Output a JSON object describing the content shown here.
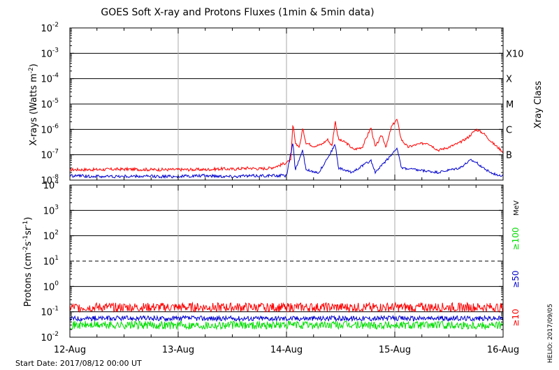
{
  "title": "GOES Soft X-ray and Protons Fluxes   (1min & 5min data)",
  "footer": {
    "start_date": "Start Date: 2017/08/12 00:00 UT",
    "credit": "HELIO: 2017/09/05"
  },
  "colors": {
    "long_xray": "#ff0000",
    "short_xray": "#0000cc",
    "p10": "#ff0000",
    "p50": "#0000cc",
    "p100": "#00dd00",
    "grid": "#000000",
    "day_lines": "#aaaaaa"
  },
  "chart_data": [
    {
      "type": "line",
      "name": "xray",
      "ylabel": "X-rays (Watts m^-2)",
      "yscale": "log",
      "ylim": [
        1e-08,
        0.01
      ],
      "xlim": [
        "2017-08-12 00:00",
        "2017-08-16 00:00"
      ],
      "x_ticks": [
        "12-Aug",
        "13-Aug",
        "14-Aug",
        "15-Aug",
        "16-Aug"
      ],
      "y_ticks": [
        {
          "base": "10",
          "exp": "-2"
        },
        {
          "base": "10",
          "exp": "-3"
        },
        {
          "base": "10",
          "exp": "-4"
        },
        {
          "base": "10",
          "exp": "-5"
        },
        {
          "base": "10",
          "exp": "-6"
        },
        {
          "base": "10",
          "exp": "-7"
        },
        {
          "base": "10",
          "exp": "-8"
        }
      ],
      "grid": true,
      "right_axis_label": "Xray Class",
      "class_labels": [
        {
          "label": "X10",
          "value": 0.001
        },
        {
          "label": "X",
          "value": 0.0001
        },
        {
          "label": "M",
          "value": 1e-05
        },
        {
          "label": "C",
          "value": 1e-06
        },
        {
          "label": "B",
          "value": 1e-07
        }
      ],
      "series": [
        {
          "key": "long",
          "points": [
            [
              0,
              2.6e-08
            ],
            [
              0.25,
              2.6e-08
            ],
            [
              0.5,
              2.7e-08
            ],
            [
              0.75,
              2.6e-08
            ],
            [
              1.0,
              2.6e-08
            ],
            [
              1.25,
              2.6e-08
            ],
            [
              1.4,
              2.8e-08
            ],
            [
              1.5,
              2.7e-08
            ],
            [
              1.65,
              3e-08
            ],
            [
              1.75,
              2.8e-08
            ],
            [
              1.85,
              3e-08
            ],
            [
              1.95,
              4e-08
            ],
            [
              2.0,
              5e-08
            ],
            [
              2.04,
              6e-08
            ],
            [
              2.06,
              1.8e-06
            ],
            [
              2.08,
              3e-07
            ],
            [
              2.12,
              2e-07
            ],
            [
              2.15,
              1.1e-06
            ],
            [
              2.18,
              3e-07
            ],
            [
              2.25,
              2.2e-07
            ],
            [
              2.32,
              2.5e-07
            ],
            [
              2.38,
              4e-07
            ],
            [
              2.42,
              2.2e-07
            ],
            [
              2.45,
              2.2e-06
            ],
            [
              2.48,
              4e-07
            ],
            [
              2.55,
              3e-07
            ],
            [
              2.62,
              1.6e-07
            ],
            [
              2.7,
              2e-07
            ],
            [
              2.78,
              1.2e-06
            ],
            [
              2.82,
              2e-07
            ],
            [
              2.88,
              6e-07
            ],
            [
              2.92,
              2e-07
            ],
            [
              2.97,
              1.3e-06
            ],
            [
              3.02,
              2.5e-06
            ],
            [
              3.06,
              4e-07
            ],
            [
              3.12,
              2e-07
            ],
            [
              3.2,
              2.5e-07
            ],
            [
              3.3,
              3e-07
            ],
            [
              3.4,
              1.5e-07
            ],
            [
              3.5,
              2e-07
            ],
            [
              3.6,
              3e-07
            ],
            [
              3.68,
              5e-07
            ],
            [
              3.75,
              1e-06
            ],
            [
              3.82,
              7e-07
            ],
            [
              3.9,
              3e-07
            ],
            [
              4.0,
              1.3e-07
            ]
          ]
        },
        {
          "key": "short",
          "points": [
            [
              0,
              1.5e-08
            ],
            [
              0.25,
              1.4e-08
            ],
            [
              0.5,
              1.4e-08
            ],
            [
              0.75,
              1.4e-08
            ],
            [
              1.0,
              1.4e-08
            ],
            [
              1.25,
              1.5e-08
            ],
            [
              1.5,
              1.4e-08
            ],
            [
              1.75,
              1.5e-08
            ],
            [
              2.0,
              1.5e-08
            ],
            [
              2.06,
              3e-07
            ],
            [
              2.08,
              2.5e-08
            ],
            [
              2.15,
              1.5e-07
            ],
            [
              2.18,
              2.5e-08
            ],
            [
              2.3,
              2e-08
            ],
            [
              2.45,
              2.5e-07
            ],
            [
              2.48,
              3e-08
            ],
            [
              2.6,
              2e-08
            ],
            [
              2.78,
              6e-08
            ],
            [
              2.82,
              2e-08
            ],
            [
              2.97,
              1e-07
            ],
            [
              3.02,
              2e-07
            ],
            [
              3.06,
              3e-08
            ],
            [
              3.2,
              2.5e-08
            ],
            [
              3.4,
              2e-08
            ],
            [
              3.6,
              3e-08
            ],
            [
              3.7,
              6e-08
            ],
            [
              3.75,
              5e-08
            ],
            [
              3.82,
              3e-08
            ],
            [
              3.9,
              1.8e-08
            ],
            [
              4.0,
              1.5e-08
            ]
          ]
        }
      ]
    },
    {
      "type": "line",
      "name": "protons",
      "ylabel": "Protons (cm^-2 s^-1 sr^-1)",
      "yscale": "log",
      "ylim": [
        0.01,
        10000.0
      ],
      "x_ticks": [
        "12-Aug",
        "13-Aug",
        "14-Aug",
        "15-Aug",
        "16-Aug"
      ],
      "y_ticks": [
        {
          "base": "10",
          "exp": "4"
        },
        {
          "base": "10",
          "exp": "3"
        },
        {
          "base": "10",
          "exp": "2"
        },
        {
          "base": "10",
          "exp": "1"
        },
        {
          "base": "10",
          "exp": "0"
        },
        {
          "base": "10",
          "exp": "-1"
        },
        {
          "base": "10",
          "exp": "-2"
        }
      ],
      "grid": true,
      "threshold": 10,
      "right_axis_label": "MeV",
      "energy_labels": [
        {
          "label": "≥100",
          "color": "#00dd00"
        },
        {
          "label": "≥50",
          "color": "#0000cc"
        },
        {
          "label": "≥10",
          "color": "#ff0000"
        }
      ],
      "series": [
        {
          "key": "p10",
          "base": 0.15
        },
        {
          "key": "p50",
          "base": 0.055
        },
        {
          "key": "p100",
          "base": 0.03
        }
      ]
    }
  ]
}
